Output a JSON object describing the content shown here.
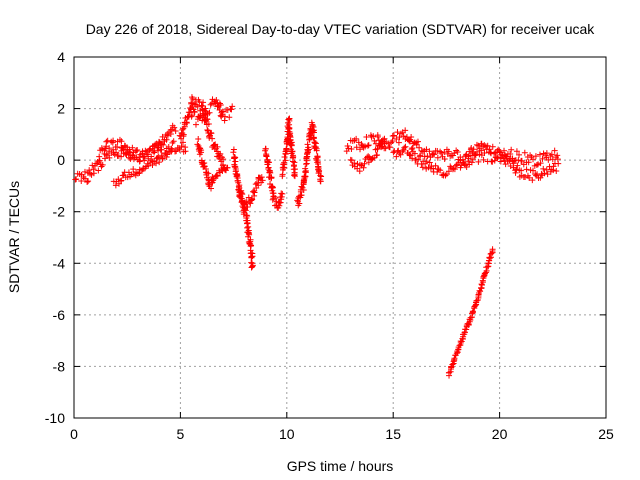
{
  "chart_data": {
    "type": "scatter",
    "title": "Day 226 of 2018, Sidereal Day-to-day VTEC variation (SDTVAR) for receiver ucak",
    "xlabel": "GPS time / hours",
    "ylabel": "SDTVAR / TECUs",
    "xlim": [
      0,
      25
    ],
    "ylim": [
      -10,
      4
    ],
    "xticks": [
      0,
      5,
      10,
      15,
      20,
      25
    ],
    "yticks": [
      -10,
      -8,
      -6,
      -4,
      -2,
      0,
      2,
      4
    ],
    "grid": true,
    "marker": "+",
    "color": "#ff0000",
    "series": [
      {
        "name": "SDTVAR",
        "segments": [
          {
            "band": 0.45,
            "points": [
              [
                0,
                -0.6
              ],
              [
                0.5,
                -0.7
              ],
              [
                1,
                -0.3
              ],
              [
                1.5,
                0.1
              ],
              [
                2,
                0.3
              ],
              [
                2.5,
                0.4
              ],
              [
                3,
                0.1
              ],
              [
                3.5,
                0.2
              ],
              [
                4,
                0.3
              ],
              [
                4.5,
                0.5
              ],
              [
                5,
                0.6
              ],
              [
                5.3,
                0.4
              ]
            ]
          },
          {
            "band": 0.35,
            "points": [
              [
                1.2,
                0.3
              ],
              [
                1.6,
                0.6
              ],
              [
                2.2,
                0.7
              ],
              [
                2.6,
                0.2
              ],
              [
                3.2,
                0.3
              ],
              [
                3.8,
                0.4
              ],
              [
                4.3,
                0.9
              ],
              [
                4.8,
                1.3
              ]
            ]
          },
          {
            "band": 0.3,
            "points": [
              [
                1.9,
                -0.9
              ],
              [
                2.4,
                -0.6
              ],
              [
                3,
                -0.4
              ],
              [
                3.6,
                -0.1
              ],
              [
                4.2,
                0.1
              ],
              [
                4.7,
                0.3
              ]
            ]
          },
          {
            "band": 0.5,
            "points": [
              [
                5,
                0.8
              ],
              [
                5.3,
                1.6
              ],
              [
                5.6,
                2.4
              ],
              [
                6,
                2.1
              ],
              [
                6.4,
                1.0
              ],
              [
                6.8,
                0.2
              ],
              [
                7.1,
                -0.3
              ]
            ]
          },
          {
            "band": 0.5,
            "points": [
              [
                5.5,
                1.8
              ],
              [
                5.9,
                1.5
              ],
              [
                6.3,
                2.0
              ],
              [
                6.7,
                2.3
              ],
              [
                7,
                1.7
              ],
              [
                7.5,
                2.0
              ]
            ]
          },
          {
            "band": 0.35,
            "points": [
              [
                5.8,
                0.7
              ],
              [
                6.1,
                -0.2
              ],
              [
                6.4,
                -1.0
              ],
              [
                6.6,
                -0.6
              ],
              [
                6.9,
                -0.4
              ],
              [
                7.3,
                -0.2
              ]
            ]
          },
          {
            "band": 0.45,
            "points": [
              [
                7.5,
                0.4
              ],
              [
                7.7,
                -0.8
              ],
              [
                7.9,
                -1.6
              ],
              [
                8.1,
                -2.2
              ],
              [
                8.3,
                -3.4
              ],
              [
                8.4,
                -4.2
              ]
            ]
          },
          {
            "band": 0.4,
            "points": [
              [
                7.7,
                -1.0
              ],
              [
                8.0,
                -1.8
              ],
              [
                8.3,
                -1.5
              ],
              [
                8.6,
                -1.0
              ],
              [
                8.9,
                -0.6
              ]
            ]
          },
          {
            "band": 0.45,
            "points": [
              [
                9.0,
                0.5
              ],
              [
                9.2,
                -0.5
              ],
              [
                9.4,
                -1.5
              ],
              [
                9.6,
                -1.8
              ],
              [
                9.8,
                -1.2
              ]
            ]
          },
          {
            "band": 0.45,
            "points": [
              [
                9.8,
                -0.5
              ],
              [
                10.0,
                0.4
              ],
              [
                10.1,
                1.5
              ],
              [
                10.2,
                0.6
              ],
              [
                10.4,
                -0.6
              ]
            ]
          },
          {
            "band": 0.4,
            "points": [
              [
                10.5,
                -1.8
              ],
              [
                10.8,
                -1.0
              ],
              [
                11.0,
                0.5
              ],
              [
                11.2,
                1.4
              ],
              [
                11.4,
                0.2
              ],
              [
                11.6,
                -0.9
              ]
            ]
          },
          {
            "band": 0.5,
            "points": [
              [
                12.8,
                0.5
              ],
              [
                13.3,
                0.6
              ],
              [
                13.8,
                0.7
              ],
              [
                14.2,
                0.8
              ],
              [
                14.6,
                0.5
              ],
              [
                15.0,
                0.8
              ],
              [
                15.5,
                1.0
              ],
              [
                16.0,
                0.6
              ],
              [
                16.5,
                0.3
              ],
              [
                17.0,
                0.2
              ],
              [
                17.5,
                0.3
              ],
              [
                18.0,
                0.1
              ],
              [
                18.5,
                -0.1
              ],
              [
                19.0,
                0.1
              ],
              [
                19.5,
                0.2
              ],
              [
                20.0,
                0.1
              ],
              [
                20.5,
                0.2
              ],
              [
                21.0,
                0.1
              ],
              [
                21.5,
                0.0
              ],
              [
                22.0,
                0.1
              ],
              [
                22.5,
                0.2
              ],
              [
                22.8,
                0.2
              ]
            ]
          },
          {
            "band": 0.4,
            "points": [
              [
                15.0,
                0.2
              ],
              [
                15.6,
                0.4
              ],
              [
                16.2,
                0.0
              ],
              [
                16.8,
                -0.3
              ],
              [
                17.4,
                -0.5
              ],
              [
                17.8,
                -0.4
              ],
              [
                18.3,
                -0.1
              ],
              [
                18.8,
                0.4
              ],
              [
                19.3,
                0.5
              ],
              [
                19.8,
                0.3
              ],
              [
                20.5,
                -0.1
              ],
              [
                21.0,
                -0.5
              ],
              [
                21.6,
                -0.6
              ],
              [
                22.2,
                -0.4
              ],
              [
                22.8,
                -0.2
              ]
            ]
          },
          {
            "band": 0.3,
            "points": [
              [
                13.0,
                -0.1
              ],
              [
                13.4,
                -0.3
              ],
              [
                13.8,
                0.0
              ],
              [
                14.2,
                0.3
              ],
              [
                14.6,
                0.9
              ]
            ]
          },
          {
            "band": 0.12,
            "points": [
              [
                17.6,
                -8.3
              ],
              [
                18.2,
                -7.0
              ],
              [
                18.7,
                -6.0
              ],
              [
                19.1,
                -5.0
              ],
              [
                19.4,
                -4.2
              ],
              [
                19.7,
                -3.4
              ]
            ]
          }
        ]
      }
    ]
  }
}
